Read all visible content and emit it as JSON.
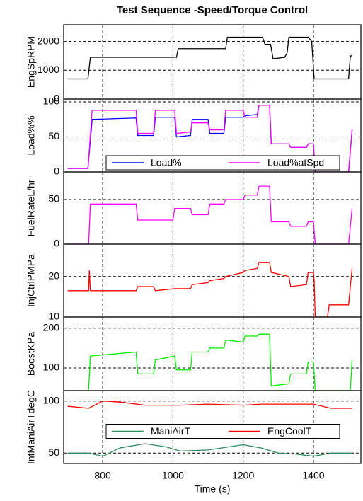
{
  "title": "Test Sequence -Speed/Torque Control",
  "chart_data": [
    {
      "type": "line",
      "y_label": "EngSpRPM",
      "x": [
        700,
        758,
        765,
        1010,
        1015,
        1150,
        1155,
        1255,
        1262,
        1278,
        1285,
        1318,
        1325,
        1330,
        1385,
        1395,
        1402,
        1500,
        1505,
        1510
      ],
      "series": [
        {
          "color": "#000000",
          "values": [
            700,
            700,
            1450,
            1450,
            1750,
            1750,
            2150,
            2150,
            1900,
            1900,
            1400,
            1450,
            1600,
            2150,
            2150,
            2000,
            700,
            700,
            1500,
            1500
          ]
        }
      ],
      "xlim": [
        689,
        1535
      ],
      "xticks": [
        800,
        1000,
        1200,
        1400
      ],
      "ylim": [
        0,
        2580
      ],
      "yticks": [
        0,
        1000,
        2000
      ],
      "grid": true
    },
    {
      "type": "line",
      "y_label": "Load%%",
      "x": [
        700,
        758,
        770,
        895,
        900,
        945,
        950,
        1005,
        1010,
        1050,
        1055,
        1100,
        1105,
        1145,
        1150,
        1200,
        1205,
        1240,
        1245,
        1275,
        1280,
        1330,
        1335,
        1380,
        1385,
        1400,
        1405,
        1500,
        1510
      ],
      "series": [
        {
          "name": "Load%",
          "color": "#0000ff",
          "values": [
            5,
            5,
            75,
            77,
            52,
            52,
            78,
            78,
            50,
            52,
            75,
            75,
            55,
            55,
            78,
            78,
            80,
            82,
            95,
            95,
            40,
            40,
            35,
            35,
            40,
            40,
            0,
            0,
            60
          ]
        },
        {
          "name": "Load%atSpd",
          "color": "#ff00ff",
          "values": [
            5,
            5,
            88,
            88,
            55,
            55,
            88,
            88,
            55,
            57,
            70,
            70,
            60,
            60,
            88,
            88,
            78,
            78,
            95,
            95,
            40,
            40,
            35,
            35,
            40,
            40,
            0,
            0,
            60
          ]
        }
      ],
      "legend": "lower center",
      "xlim": [
        689,
        1535
      ],
      "xticks": [
        800,
        1000,
        1200,
        1400
      ],
      "ylim": [
        0,
        104
      ],
      "yticks": [
        0,
        50,
        100
      ],
      "grid": true
    },
    {
      "type": "line",
      "y_label": "FuelRateL/hr",
      "x": [
        700,
        760,
        765,
        895,
        900,
        1000,
        1005,
        1050,
        1055,
        1100,
        1105,
        1145,
        1150,
        1200,
        1205,
        1240,
        1245,
        1275,
        1280,
        1330,
        1335,
        1380,
        1385,
        1400,
        1405,
        1500,
        1510
      ],
      "series": [
        {
          "color": "#ff00ff",
          "values": [
            0,
            0,
            45,
            45,
            27,
            27,
            40,
            40,
            33,
            33,
            45,
            45,
            50,
            50,
            55,
            55,
            65,
            65,
            25,
            25,
            20,
            20,
            25,
            25,
            0,
            0,
            40
          ]
        }
      ],
      "xlim": [
        689,
        1535
      ],
      "xticks": [
        800,
        1000,
        1200,
        1400
      ],
      "ylim": [
        0,
        81
      ],
      "yticks": [
        0,
        50
      ],
      "grid": true
    },
    {
      "type": "line",
      "y_label": "InjCtrlPMPa",
      "x": [
        700,
        760,
        762,
        765,
        895,
        900,
        945,
        950,
        1005,
        1050,
        1055,
        1100,
        1105,
        1145,
        1150,
        1200,
        1205,
        1240,
        1245,
        1275,
        1280,
        1330,
        1335,
        1380,
        1385,
        1400,
        1402,
        1405,
        1440,
        1445,
        1500,
        1510
      ],
      "series": [
        {
          "color": "#ff0000",
          "values": [
            16.5,
            16.5,
            21.5,
            16.5,
            16.5,
            17.5,
            17.5,
            16.5,
            17,
            17,
            18,
            18.5,
            19,
            19.5,
            20,
            21,
            21.5,
            22,
            23.5,
            23.5,
            21,
            20,
            17.5,
            18,
            21,
            21,
            19,
            10,
            10,
            13,
            13,
            22
          ]
        }
      ],
      "xlim": [
        689,
        1535
      ],
      "xticks": [
        800,
        1000,
        1200,
        1400
      ],
      "ylim": [
        10,
        28
      ],
      "yticks": [
        10,
        20
      ],
      "grid": true
    },
    {
      "type": "line",
      "y_label": "BoostKPa",
      "x": [
        760,
        765,
        895,
        900,
        945,
        950,
        1005,
        1010,
        1050,
        1055,
        1100,
        1105,
        1145,
        1150,
        1200,
        1205,
        1240,
        1245,
        1275,
        1280,
        1330,
        1335,
        1380,
        1385,
        1400,
        1405,
        1505,
        1510
      ],
      "series": [
        {
          "color": "#00ee00",
          "values": [
            45,
            130,
            140,
            85,
            85,
            120,
            130,
            95,
            95,
            140,
            140,
            150,
            150,
            170,
            165,
            180,
            180,
            185,
            185,
            55,
            60,
            85,
            85,
            115,
            115,
            43,
            43,
            120
          ]
        }
      ],
      "xlim": [
        689,
        1535
      ],
      "xticks": [
        800,
        1000,
        1200,
        1400
      ],
      "ylim": [
        43,
        228
      ],
      "yticks": [
        100,
        200
      ],
      "grid": true
    },
    {
      "type": "line",
      "y_label": "IntManiAirTdegC",
      "x_label": "Time (s)",
      "x": [
        700,
        760,
        800,
        850,
        920,
        980,
        1020,
        1100,
        1200,
        1250,
        1300,
        1350,
        1400,
        1450,
        1510
      ],
      "series": [
        {
          "name": "ManiAirT",
          "color": "#2e8b57",
          "values": [
            50,
            50,
            47,
            55,
            59,
            56,
            52,
            53,
            58,
            55,
            50,
            49,
            47,
            50,
            50
          ]
        },
        {
          "name": "EngCoolT",
          "color": "#ff0000",
          "values": [
            95,
            93,
            100,
            99,
            96,
            96,
            96,
            97,
            96,
            97,
            97,
            97,
            97,
            93,
            93
          ]
        }
      ],
      "legend": "center",
      "xlim": [
        689,
        1535
      ],
      "xticks": [
        800,
        1000,
        1200,
        1400
      ],
      "ylim": [
        40,
        110
      ],
      "yticks": [
        50,
        100
      ],
      "grid": true,
      "show_x_tick_labels": true
    }
  ]
}
